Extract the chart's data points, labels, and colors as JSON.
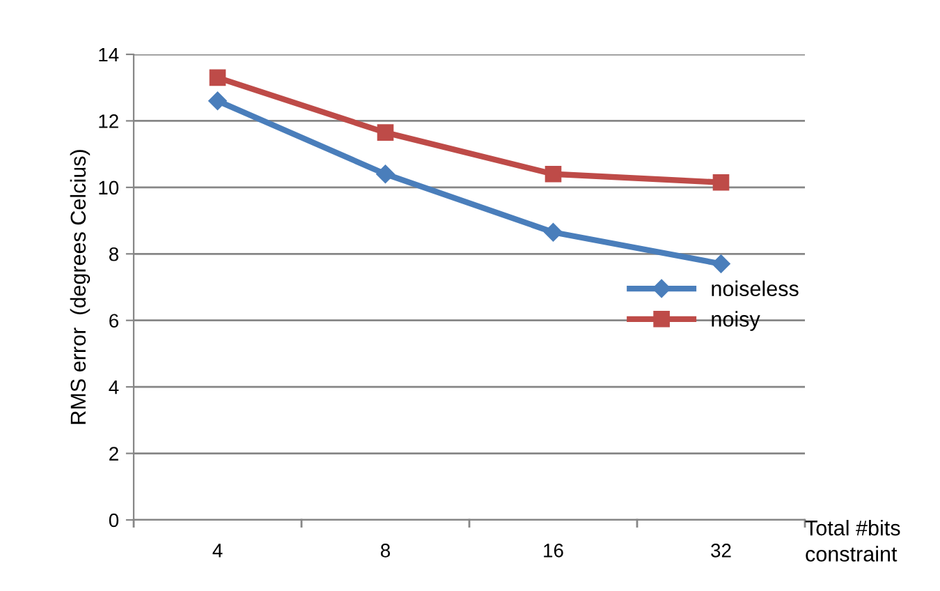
{
  "chart_data": {
    "type": "line",
    "xlabel": "Total #bits\nconstraint",
    "ylabel": "RMS error  (degrees Celcius)",
    "categories": [
      "4",
      "8",
      "16",
      "32"
    ],
    "series": [
      {
        "name": "noiseless",
        "color": "#4a7ebb",
        "marker": "diamond",
        "values": [
          12.6,
          10.4,
          8.65,
          7.7
        ]
      },
      {
        "name": "noisy",
        "color": "#be4b48",
        "marker": "square",
        "values": [
          13.3,
          11.65,
          10.4,
          10.15
        ]
      }
    ],
    "ylim": [
      0,
      14
    ],
    "yticks": [
      0,
      2,
      4,
      6,
      8,
      10,
      12,
      14
    ],
    "grid": "y",
    "legend": "right",
    "line_style": "solid"
  }
}
